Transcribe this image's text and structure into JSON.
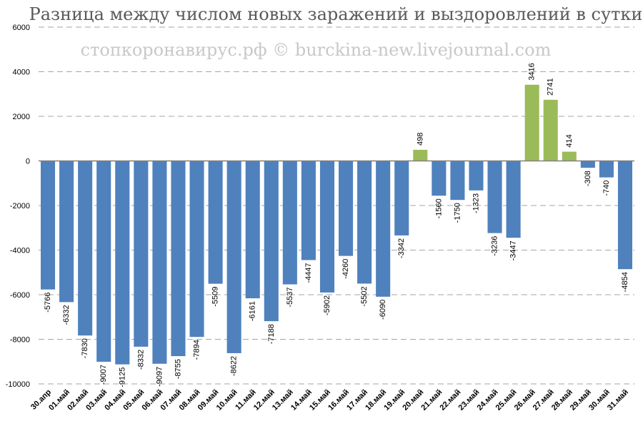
{
  "chart_data": {
    "type": "bar",
    "title": "Разница между числом новых заражений и выздоровлений в сутки",
    "watermark": "стопкоронавирус.рф © burckina-new.livejournal.com",
    "xlabel": "",
    "ylabel": "",
    "ylim": [
      -10000,
      6000
    ],
    "yticks": [
      6000,
      4000,
      2000,
      0,
      -2000,
      -4000,
      -6000,
      -8000,
      -10000
    ],
    "grid": true,
    "categories": [
      "30.апр",
      "01.май",
      "02.май",
      "03.май",
      "04.май",
      "05.май",
      "06.май",
      "07.май",
      "08.май",
      "09.май",
      "10.май",
      "11.май",
      "12.май",
      "13.май",
      "14.май",
      "15.май",
      "16.май",
      "17.май",
      "18.май",
      "19.май",
      "20.май",
      "21.май",
      "22.май",
      "23.май",
      "24.май",
      "25.май",
      "26.май",
      "27.май",
      "28.май",
      "29.май",
      "30.май",
      "31.май"
    ],
    "values": [
      -5766,
      -6332,
      -7830,
      -9007,
      -9125,
      -8332,
      -9097,
      -8755,
      -7894,
      -5509,
      -8622,
      -6161,
      -7188,
      -5537,
      -4447,
      -5902,
      -4260,
      -5502,
      -6090,
      -3342,
      498,
      -1560,
      -1750,
      -1323,
      -3236,
      -3447,
      3416,
      2741,
      414,
      -308,
      -740,
      -4854
    ],
    "colors": {
      "negative": "#4f81bd",
      "positive": "#9bbb59",
      "grid": "#a6a6a6",
      "axis": "#808080"
    }
  }
}
